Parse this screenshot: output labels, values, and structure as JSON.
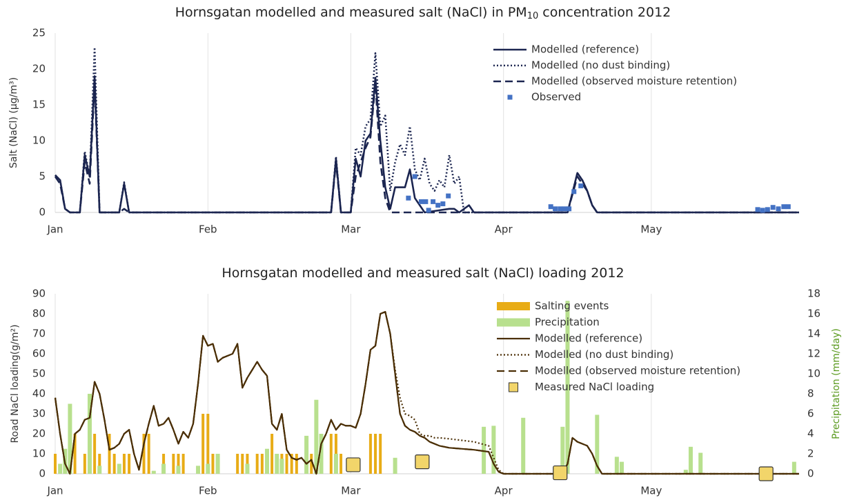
{
  "chart_data": [
    {
      "type": "line",
      "title": "Hornsgatan modelled and measured salt (NaCl) in PM",
      "title_subscript": "10",
      "title_suffix": " concentration 2012",
      "ylabel": "Salt (NaCl) (µg/m³)",
      "xlim": [
        0,
        151
      ],
      "xticks": [
        {
          "value": 0,
          "label": "Jan"
        },
        {
          "value": 31,
          "label": "Feb"
        },
        {
          "value": 60,
          "label": "Mar"
        },
        {
          "value": 91,
          "label": "Apr"
        },
        {
          "value": 121,
          "label": "May"
        }
      ],
      "ylim": [
        0,
        25
      ],
      "yticks": [
        0,
        5,
        10,
        15,
        20,
        25
      ],
      "grid": true,
      "series": [
        {
          "name": "Modelled (reference)",
          "style": "solid",
          "color": "#1b2550",
          "x": [
            0,
            1,
            2,
            3,
            5,
            6,
            7,
            8,
            9,
            13,
            14,
            15,
            56,
            57,
            58,
            60,
            61,
            62,
            63,
            64,
            65,
            66,
            67,
            68,
            69,
            71,
            72,
            73,
            74,
            75,
            78,
            80,
            81,
            82,
            84,
            85,
            104,
            106,
            107,
            108,
            109,
            110,
            151
          ],
          "values": [
            5.2,
            4.5,
            0.5,
            0,
            0,
            8,
            5,
            19,
            0,
            0,
            4,
            0,
            0,
            7.5,
            0,
            0,
            7.5,
            5,
            10,
            11,
            18.8,
            10,
            3.5,
            0.5,
            3.5,
            3.5,
            6,
            2,
            1,
            0,
            0.3,
            0.5,
            0.5,
            0,
            1,
            0,
            0,
            5.5,
            4.5,
            3,
            1,
            0,
            0
          ]
        },
        {
          "name": "Modelled (no dust binding)",
          "style": "dotted",
          "color": "#1b2550",
          "x": [
            0,
            1,
            2,
            3,
            5,
            6,
            7,
            8,
            9,
            13,
            14,
            15,
            56,
            57,
            58,
            60,
            61,
            62,
            63,
            64,
            65,
            66,
            67,
            68,
            69,
            70,
            71,
            72,
            73,
            74,
            75,
            76,
            77,
            78,
            79,
            80,
            81,
            82,
            83,
            104,
            106,
            107,
            108,
            109,
            110,
            151
          ],
          "values": [
            5.2,
            4.5,
            0.5,
            0,
            0,
            8.5,
            5,
            23,
            0,
            0,
            4.2,
            0,
            0,
            7.8,
            0,
            0,
            9,
            8,
            12,
            13,
            22.2,
            12,
            13.5,
            3,
            7,
            9.5,
            8,
            12,
            6,
            4.5,
            7.5,
            4,
            3,
            4.5,
            3.5,
            8,
            4,
            5,
            0,
            0,
            5.5,
            4.5,
            3,
            1,
            0,
            0
          ]
        },
        {
          "name": "Modelled (observed moisture retention)",
          "style": "dashed",
          "color": "#1b2550",
          "x": [
            0,
            1,
            2,
            3,
            5,
            6,
            7,
            8,
            9,
            13,
            14,
            15,
            56,
            57,
            58,
            60,
            61,
            62,
            63,
            64,
            65,
            66,
            67,
            68,
            104,
            106,
            107,
            108,
            109,
            110,
            151
          ],
          "values": [
            5,
            4,
            0.5,
            0,
            0,
            7,
            4,
            18,
            0,
            0,
            0.5,
            0,
            0,
            7,
            0,
            0,
            5,
            7,
            9,
            10.5,
            18,
            7,
            2,
            0,
            0,
            5,
            4,
            3,
            1,
            0,
            0
          ]
        },
        {
          "name": "Observed",
          "style": "square",
          "color": "#4472c4",
          "x": [
            71.7,
            73,
            74.3,
            75.2,
            75.8,
            76.7,
            77.7,
            78.7,
            79.8,
            100.6,
            101.5,
            102.5,
            103.4,
            104.3,
            105.3,
            106.7,
            142.6,
            143.6,
            144.6,
            145.7,
            146.8,
            147.9,
            148.8
          ],
          "values": [
            2,
            5,
            1.5,
            1.5,
            0.3,
            1.5,
            1,
            1.2,
            2.3,
            0.8,
            0.5,
            0.5,
            0.5,
            0.5,
            2.9,
            3.7,
            0.4,
            0.3,
            0.4,
            0.7,
            0.5,
            0.8,
            0.8
          ]
        }
      ]
    },
    {
      "type": "line",
      "title": "Hornsgatan modelled and measured salt (NaCl) loading 2012",
      "ylabel": "Road NaCl loading(g/m²)",
      "y2label": "Precipitation (mm/day)",
      "xlim": [
        0,
        151
      ],
      "xticks": [
        {
          "value": 0,
          "label": "Jan"
        },
        {
          "value": 31,
          "label": "Feb"
        },
        {
          "value": 60,
          "label": "Mar"
        },
        {
          "value": 91,
          "label": "Apr"
        },
        {
          "value": 121,
          "label": "May"
        }
      ],
      "ylim": [
        0,
        90
      ],
      "yticks": [
        0,
        10,
        20,
        30,
        40,
        50,
        60,
        70,
        80,
        90
      ],
      "y2lim": [
        0,
        18
      ],
      "y2ticks": [
        0,
        2,
        4,
        6,
        8,
        10,
        12,
        14,
        16,
        18
      ],
      "grid": true,
      "series": [
        {
          "name": "Salting events",
          "style": "bar",
          "color": "#e8ac16",
          "x": [
            0,
            4,
            6,
            8,
            9,
            11,
            12,
            14,
            15,
            18,
            19,
            22,
            24,
            25,
            26,
            30,
            31,
            32,
            33,
            37,
            38,
            39,
            41,
            42,
            44,
            45,
            46,
            47,
            48,
            49,
            52,
            56,
            57,
            58,
            64,
            65,
            66,
            104
          ],
          "values": [
            10,
            20,
            10,
            20,
            10,
            20,
            10,
            10,
            10,
            20,
            20,
            10,
            10,
            10,
            10,
            30,
            30,
            10,
            10,
            10,
            10,
            10,
            10,
            10,
            20,
            10,
            10,
            10,
            10,
            10,
            10,
            20,
            20,
            10,
            20,
            20,
            20,
            20
          ]
        },
        {
          "name": "Precipitation",
          "style": "bar",
          "axis": "y2",
          "color": "#b8e08e",
          "x": [
            1,
            2,
            3,
            7,
            9,
            13,
            20,
            22,
            25,
            29,
            31,
            33,
            39,
            43,
            45,
            46,
            51,
            53,
            54,
            57,
            69,
            87,
            89,
            95,
            103,
            104,
            110,
            114,
            115,
            128,
            129,
            131,
            150
          ],
          "values": [
            1,
            2.5,
            7,
            8,
            0.8,
            1,
            0.3,
            1,
            0.8,
            0.8,
            1,
            2,
            1,
            2.5,
            2,
            1.5,
            3.8,
            7.4,
            4,
            2,
            1.6,
            4.7,
            4.8,
            5.6,
            4.7,
            17.3,
            5.9,
            1.7,
            1.2,
            0.4,
            2.7,
            2.1,
            1.2
          ]
        },
        {
          "name": "Modelled (reference)",
          "style": "solid",
          "color": "#4a2e05",
          "x": [
            0,
            1,
            2,
            3,
            4,
            5,
            6,
            7,
            8,
            9,
            10,
            11,
            12,
            13,
            14,
            15,
            16,
            17,
            18,
            19,
            20,
            21,
            22,
            23,
            24,
            25,
            26,
            27,
            28,
            29,
            30,
            31,
            32,
            33,
            34,
            35,
            36,
            37,
            38,
            39,
            40,
            41,
            42,
            43,
            44,
            45,
            46,
            47,
            48,
            49,
            50,
            51,
            52,
            53,
            54,
            55,
            56,
            57,
            58,
            59,
            60,
            61,
            62,
            63,
            64,
            65,
            66,
            67,
            68,
            69,
            70,
            71,
            72,
            73,
            74,
            75,
            76,
            77,
            78,
            80,
            85,
            88,
            89,
            90,
            91,
            103,
            104,
            105,
            106,
            107,
            108,
            109,
            110,
            111,
            151
          ],
          "values": [
            38,
            20,
            5,
            0,
            20,
            22,
            27,
            28,
            46,
            40,
            27,
            12,
            13,
            15,
            20,
            22,
            10,
            2,
            15,
            25,
            34,
            24,
            25,
            28,
            22,
            15,
            21,
            18,
            25,
            45,
            69,
            64,
            65,
            56,
            58,
            59,
            60,
            65,
            43,
            48,
            52,
            56,
            52,
            49,
            25,
            22,
            30,
            12,
            8,
            7,
            8,
            5,
            7,
            0,
            15,
            20,
            27,
            22,
            25,
            24,
            24,
            23,
            30,
            45,
            62,
            64,
            80,
            81,
            70,
            50,
            30,
            24,
            22,
            21,
            19,
            18,
            16,
            15,
            14,
            13,
            12,
            11,
            5,
            1,
            0,
            0,
            5,
            18,
            16,
            15,
            14,
            10,
            4,
            0,
            0
          ]
        },
        {
          "name": "Modelled (no dust binding)",
          "style": "dotted",
          "color": "#4a2e05",
          "x": [
            0,
            1,
            2,
            3,
            4,
            5,
            6,
            7,
            8,
            9,
            10,
            11,
            12,
            13,
            14,
            15,
            16,
            17,
            18,
            19,
            20,
            21,
            22,
            23,
            24,
            25,
            26,
            27,
            28,
            29,
            30,
            31,
            32,
            33,
            34,
            35,
            36,
            37,
            38,
            39,
            40,
            41,
            42,
            43,
            44,
            45,
            46,
            47,
            48,
            49,
            50,
            51,
            52,
            53,
            54,
            55,
            56,
            57,
            58,
            59,
            60,
            61,
            62,
            63,
            64,
            65,
            66,
            67,
            68,
            69,
            70,
            71,
            72,
            73,
            74,
            75,
            76,
            77,
            78,
            80,
            85,
            88,
            89,
            90,
            91,
            103,
            104,
            105,
            106,
            107,
            108,
            109,
            110,
            111,
            151
          ],
          "values": [
            38,
            20,
            5,
            0,
            20,
            22,
            27,
            28,
            46,
            40,
            27,
            12,
            13,
            15,
            20,
            22,
            10,
            2,
            15,
            25,
            34,
            24,
            25,
            28,
            22,
            15,
            21,
            18,
            25,
            45,
            69,
            64,
            65,
            56,
            58,
            59,
            60,
            65,
            43,
            48,
            52,
            56,
            52,
            49,
            25,
            22,
            30,
            12,
            8,
            7,
            8,
            5,
            7,
            0,
            15,
            20,
            27,
            22,
            25,
            24,
            24,
            23,
            30,
            45,
            62,
            64,
            80,
            81,
            70,
            52,
            38,
            30,
            29,
            27,
            20,
            19,
            19,
            18,
            18,
            17.5,
            16,
            14,
            8,
            2,
            0,
            0,
            5,
            18,
            16,
            15,
            14,
            10,
            4,
            0,
            0
          ]
        },
        {
          "name": "Modelled (observed moisture retention)",
          "style": "dashed",
          "color": "#4a2e05",
          "x": [
            0,
            1,
            2,
            3,
            4,
            5,
            6,
            7,
            8,
            9,
            10,
            11,
            12,
            13,
            14,
            15,
            16,
            17,
            18,
            19,
            20,
            21,
            22,
            23,
            24,
            25,
            26,
            27,
            28,
            29,
            30,
            31,
            32,
            33,
            34,
            35,
            36,
            37,
            38,
            39,
            40,
            41,
            42,
            43,
            44,
            45,
            46,
            47,
            48,
            49,
            50,
            51,
            52,
            53,
            54,
            55,
            56,
            57,
            58,
            59,
            60,
            61,
            62,
            63,
            64,
            65,
            66,
            67,
            68,
            69,
            70,
            71,
            72,
            73,
            74,
            75,
            76,
            77,
            78,
            80,
            85,
            88,
            89,
            90,
            91,
            103,
            104,
            105,
            106,
            107,
            108,
            109,
            110,
            111,
            151
          ],
          "values": [
            38,
            20,
            5,
            0,
            20,
            22,
            27,
            28,
            46,
            40,
            27,
            12,
            13,
            15,
            20,
            22,
            10,
            2,
            15,
            25,
            34,
            24,
            25,
            28,
            22,
            15,
            21,
            18,
            25,
            45,
            69,
            64,
            65,
            56,
            58,
            59,
            60,
            65,
            43,
            48,
            52,
            56,
            52,
            49,
            25,
            22,
            30,
            12,
            8,
            7,
            8,
            5,
            7,
            0,
            15,
            20,
            27,
            22,
            25,
            24,
            24,
            23,
            30,
            45,
            62,
            64,
            80,
            81,
            70,
            50,
            30,
            24,
            22,
            21,
            19,
            18,
            16,
            15,
            14,
            13,
            12,
            11,
            5,
            1,
            0,
            0,
            5,
            18,
            16,
            15,
            14,
            10,
            4,
            0,
            0
          ]
        },
        {
          "name": "Measured NaCl loading",
          "style": "square",
          "color": "#f2d56a",
          "x": [
            60.5,
            74.5,
            102.5,
            144.3
          ],
          "values": [
            4.5,
            6,
            0.5,
            0
          ]
        }
      ]
    }
  ]
}
